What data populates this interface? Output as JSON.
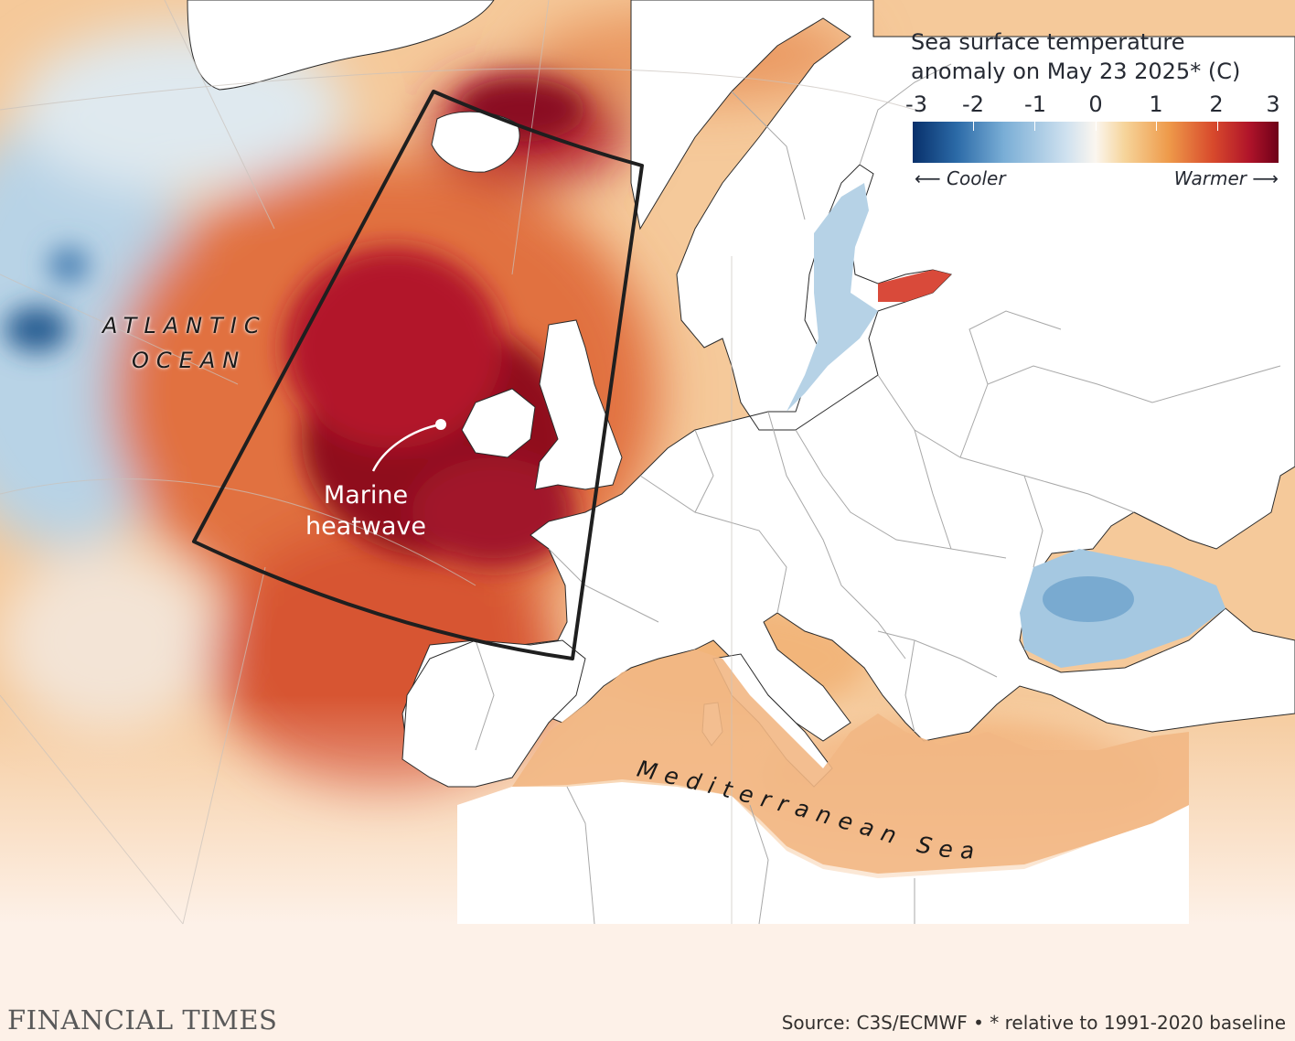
{
  "legend": {
    "title_line1": "Sea surface temperature",
    "title_line2": "anomaly on May 23 2025* (C)",
    "ticks": [
      "-3",
      "-2",
      "-1",
      "0",
      "1",
      "2",
      "3"
    ],
    "cooler_label": "Cooler",
    "warmer_label": "Warmer",
    "scale_min": -3,
    "scale_max": 3,
    "colors": [
      "#08306b",
      "#2b6aa7",
      "#7aaed6",
      "#cfe1ef",
      "#fbf6ef",
      "#f6d49a",
      "#ee9a4a",
      "#d84a2c",
      "#b0142a",
      "#6e0018"
    ]
  },
  "labels": {
    "atlantic_line1": "ATLANTIC",
    "atlantic_line2": "OCEAN",
    "mediterranean": "Mediterranean Sea",
    "heatwave_line1": "Marine",
    "heatwave_line2": "heatwave"
  },
  "footer": {
    "logo": "FINANCIAL TIMES",
    "source": "Source: C3S/ECMWF • * relative to 1991-2020 baseline"
  },
  "colors": {
    "background": "#fdf1e8",
    "land": "#ffffff",
    "border": "#9a9a9a",
    "box": "#1f1f1f"
  }
}
